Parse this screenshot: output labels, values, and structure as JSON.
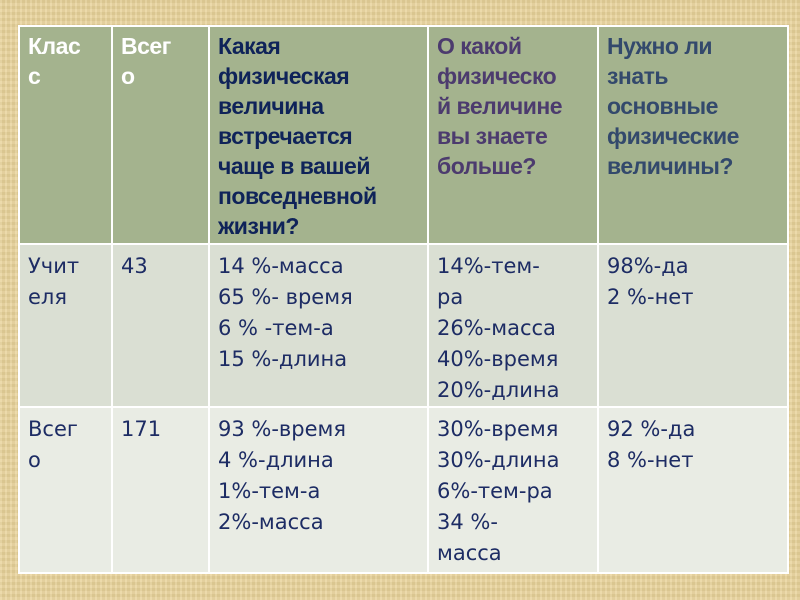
{
  "table": {
    "headers": [
      "Клас\nс",
      "Всег\nо",
      "Какая\nфизическая\nвеличина\nвстречается\nчаще в вашей\nповседневной\nжизни?",
      "О какой\nфизическо\nй величине\nвы знаете\nбольше?",
      "Нужно ли\nзнать\nосновные\nфизические\nвеличины?"
    ],
    "rows": [
      [
        "Учит\nеля",
        "43",
        "14 %-масса\n65 %- время\n6 % -тем-а\n15 %-длина",
        "14%-тем-\nра\n26%-масса\n40%-время\n20%-длина",
        "98%-да\n2 %-нет"
      ],
      [
        "Всег\nо",
        "171",
        "93 %-время\n4 %-длина\n1%-тем-а\n2%-масса",
        "30%-время\n30%-длина\n6%-тем-ра\n34 %-\nмасса",
        "92 %-да\n8 %-нет"
      ]
    ]
  },
  "colors": {
    "header_bg": "#a4b38e",
    "row1_bg": "#dadfd3",
    "row2_bg": "#e9ece4",
    "body_text": "#1d2c64",
    "background": "#e8d39a"
  }
}
